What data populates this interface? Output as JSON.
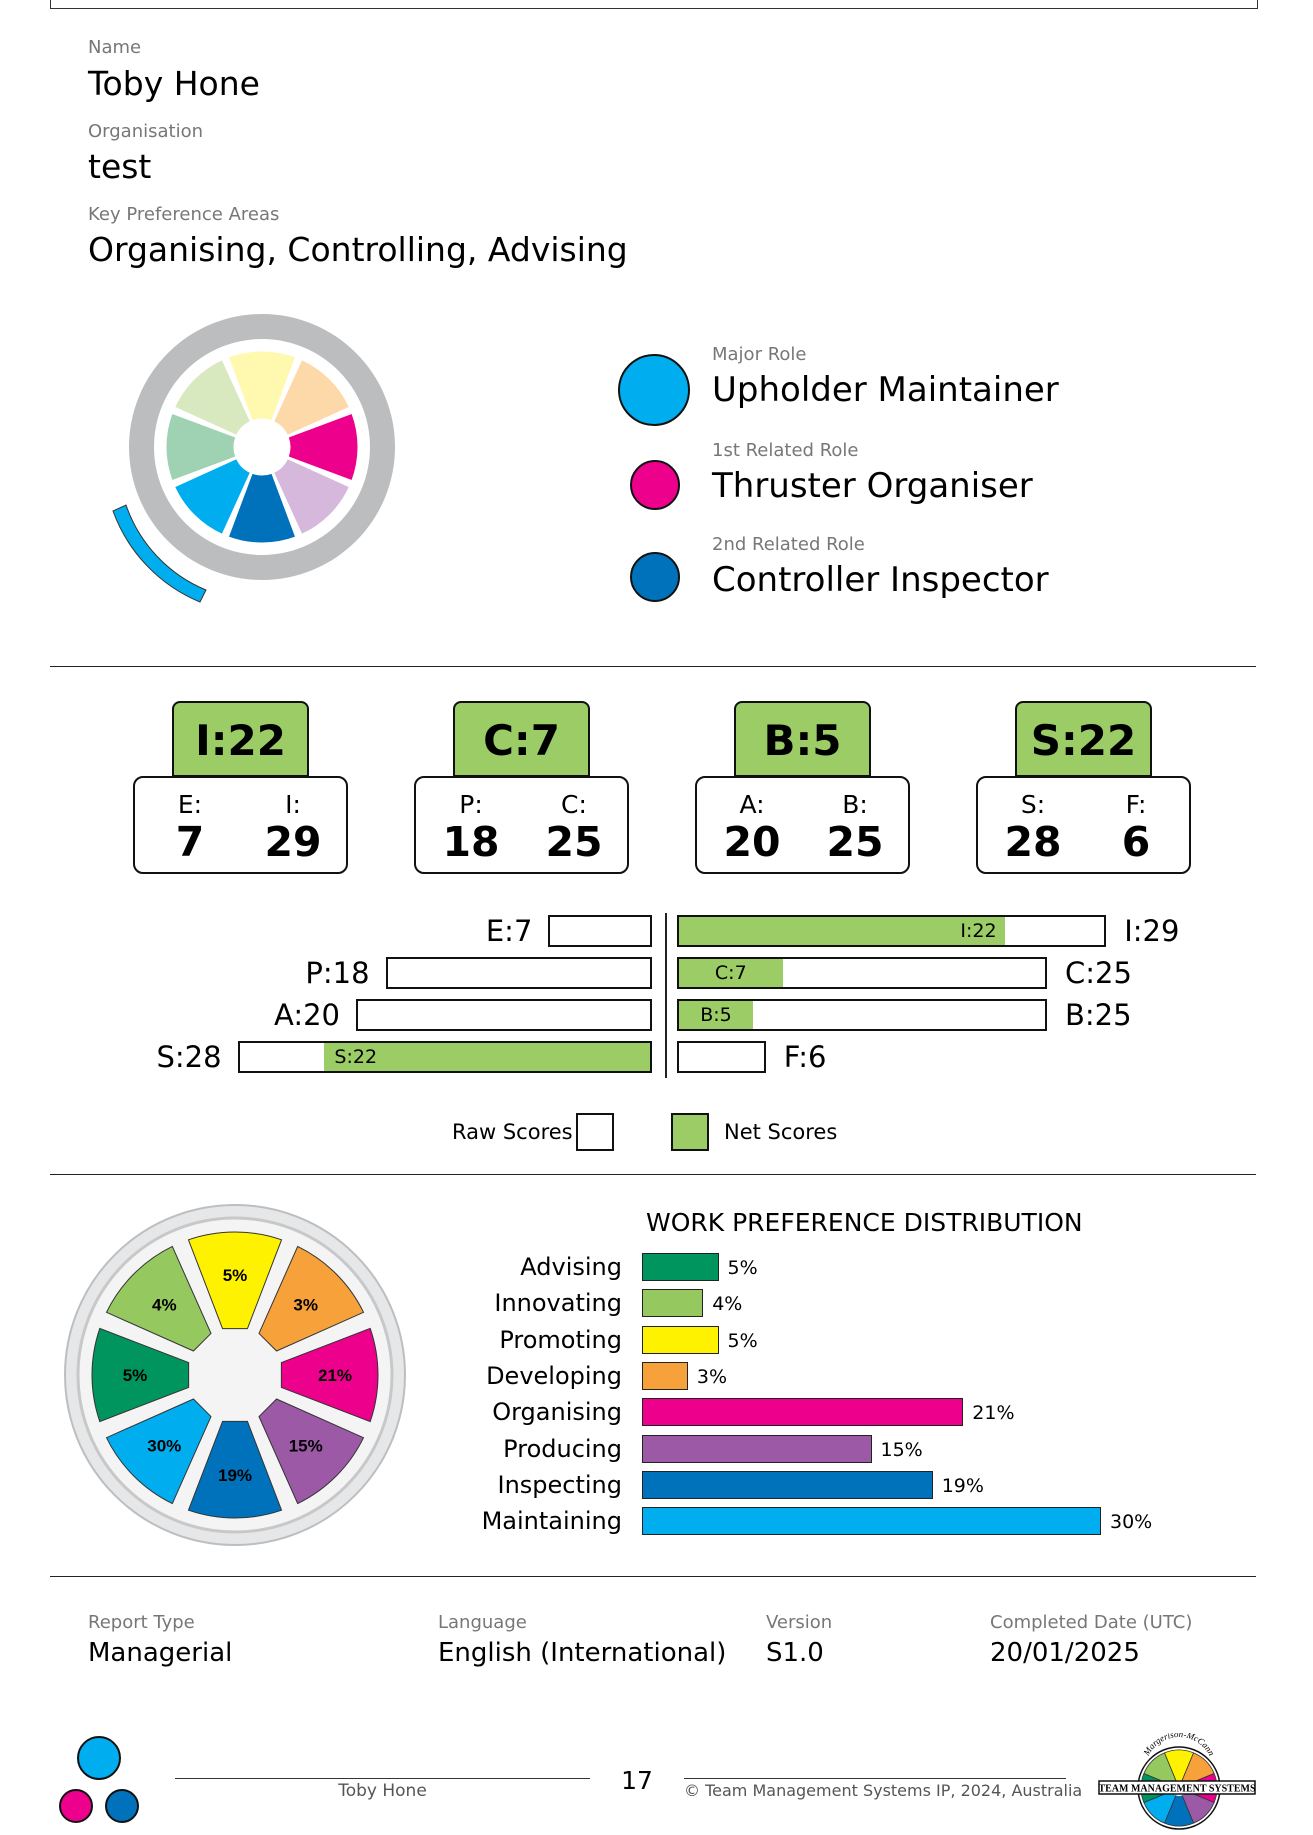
{
  "profile": {
    "name_label": "Name",
    "name": "Toby Hone",
    "org_label": "Organisation",
    "org": "test",
    "kpa_label": "Key Preference Areas",
    "kpa": "Organising, Controlling, Advising"
  },
  "roles": {
    "major_label": "Major Role",
    "major": "Upholder Maintainer",
    "major_color": "#00aeef",
    "first_label": "1st Related Role",
    "first": "Thruster Organiser",
    "first_color": "#ec008c",
    "second_label": "2nd Related Role",
    "second": "Controller Inspector",
    "second_color": "#0072bc"
  },
  "net_scores": [
    {
      "tab": "I:22",
      "left_label": "E:",
      "left_value": "7",
      "right_label": "I:",
      "right_value": "29"
    },
    {
      "tab": "C:7",
      "left_label": "P:",
      "left_value": "18",
      "right_label": "C:",
      "right_value": "25"
    },
    {
      "tab": "B:5",
      "left_label": "A:",
      "left_value": "20",
      "right_label": "B:",
      "right_value": "25"
    },
    {
      "tab": "S:22",
      "left_label": "S:",
      "left_value": "28",
      "right_label": "F:",
      "right_value": "6"
    }
  ],
  "score_bars": {
    "rows": [
      {
        "left_label": "E:7",
        "left_raw": 7,
        "right_label": "I:29",
        "right_raw": 29,
        "net_side": "right",
        "net": 22,
        "net_label": "I:22"
      },
      {
        "left_label": "P:18",
        "left_raw": 18,
        "right_label": "C:25",
        "right_raw": 25,
        "net_side": "right",
        "net": 7,
        "net_label": "C:7"
      },
      {
        "left_label": "A:20",
        "left_raw": 20,
        "right_label": "B:25",
        "right_raw": 25,
        "net_side": "right",
        "net": 5,
        "net_label": "B:5"
      },
      {
        "left_label": "S:28",
        "left_raw": 28,
        "right_label": "F:6",
        "right_raw": 6,
        "net_side": "left",
        "net": 22,
        "net_label": "S:22"
      }
    ],
    "legend_raw": "Raw Scores",
    "legend_net": "Net Scores",
    "net_color": "#9ccc65"
  },
  "chart_data": {
    "type": "bar",
    "title": "WORK PREFERENCE DISTRIBUTION",
    "categories": [
      "Advising",
      "Innovating",
      "Promoting",
      "Developing",
      "Organising",
      "Producing",
      "Inspecting",
      "Maintaining"
    ],
    "values": [
      5,
      4,
      5,
      3,
      21,
      15,
      19,
      30
    ],
    "value_labels": [
      "5%",
      "4%",
      "5%",
      "3%",
      "21%",
      "15%",
      "19%",
      "30%"
    ],
    "colors": [
      "#00945e",
      "#95c85f",
      "#fff200",
      "#f7a13b",
      "#ec008c",
      "#9b59a6",
      "#0072bc",
      "#00aeef"
    ],
    "orientation": "horizontal",
    "unit": "%"
  },
  "wheel_segments": [
    {
      "name": "Promoting",
      "label": "5%",
      "color": "#fff200"
    },
    {
      "name": "Developing",
      "label": "3%",
      "color": "#f7a13b"
    },
    {
      "name": "Organising",
      "label": "21%",
      "color": "#ec008c"
    },
    {
      "name": "Producing",
      "label": "15%",
      "color": "#9b59a6"
    },
    {
      "name": "Inspecting",
      "label": "19%",
      "color": "#0072bc"
    },
    {
      "name": "Maintaining",
      "label": "30%",
      "color": "#00aeef"
    },
    {
      "name": "Advising",
      "label": "5%",
      "color": "#00945e"
    },
    {
      "name": "Innovating",
      "label": "4%",
      "color": "#95c85f"
    }
  ],
  "report": {
    "type_label": "Report Type",
    "type": "Managerial",
    "lang_label": "Language",
    "lang": "English (International)",
    "version_label": "Version",
    "version": "S1.0",
    "date_label": "Completed Date (UTC)",
    "date": "20/01/2025"
  },
  "footer": {
    "name": "Toby Hone",
    "page": "17",
    "copyright": "© Team Management Systems IP, 2024, Australia",
    "logo_text": "TEAM MANAGEMENT SYSTEMS",
    "logo_arc": "Margerison-McCann"
  }
}
